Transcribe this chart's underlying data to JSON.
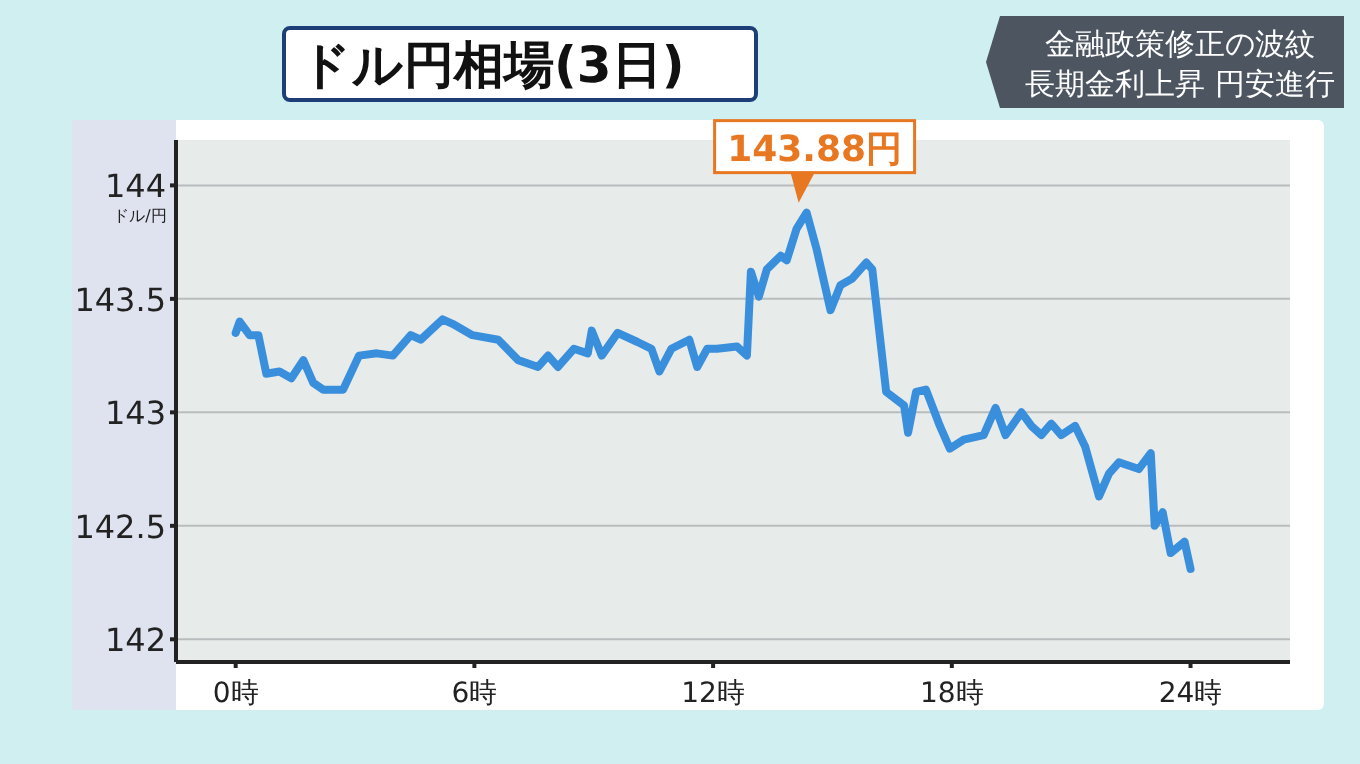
{
  "chart_data": {
    "type": "line",
    "title": "ドル円相場(3日)",
    "ylabel": "ドル/円",
    "annotations": [
      "金融政策修正の波紋",
      "長期金利上昇 円安進行",
      {
        "text": "143.88円",
        "x": 14.35,
        "y": 143.88
      }
    ],
    "series": [
      {
        "color": "#3a8fdc",
        "x": [
          0,
          0.1,
          0.35,
          0.57,
          0.77,
          1.1,
          1.4,
          1.7,
          1.95,
          2.2,
          2.7,
          3.1,
          3.55,
          3.95,
          4.4,
          4.65,
          5.2,
          5.45,
          5.95,
          6.6,
          7.1,
          7.6,
          7.85,
          8.1,
          8.5,
          8.85,
          8.95,
          9.2,
          9.6,
          10.1,
          10.45,
          10.65,
          10.95,
          11.4,
          11.6,
          11.85,
          12.1,
          12.6,
          12.85,
          12.95,
          13.15,
          13.35,
          13.7,
          13.85,
          14.1,
          14.35,
          14.6,
          14.95,
          15.2,
          15.5,
          15.85,
          16.0,
          16.35,
          16.8,
          16.9,
          17.1,
          17.35,
          17.7,
          17.95,
          18.3,
          18.8,
          19.1,
          19.35,
          19.75,
          20.0,
          20.25,
          20.5,
          20.75,
          21.1,
          21.35,
          21.7,
          21.95,
          22.2,
          22.7,
          23.0,
          23.1,
          23.3,
          23.5,
          23.85,
          24.0
        ],
        "values": [
          143.35,
          143.4,
          143.34,
          143.34,
          143.17,
          143.18,
          143.15,
          143.23,
          143.13,
          143.1,
          143.1,
          143.25,
          143.26,
          143.25,
          143.34,
          143.32,
          143.41,
          143.39,
          143.34,
          143.32,
          143.23,
          143.2,
          143.25,
          143.2,
          143.28,
          143.26,
          143.36,
          143.25,
          143.35,
          143.31,
          143.28,
          143.18,
          143.28,
          143.32,
          143.2,
          143.28,
          143.28,
          143.29,
          143.25,
          143.62,
          143.51,
          143.63,
          143.69,
          143.67,
          143.81,
          143.88,
          143.72,
          143.45,
          143.56,
          143.59,
          143.66,
          143.63,
          143.09,
          143.03,
          142.91,
          143.09,
          143.1,
          142.94,
          142.84,
          142.88,
          142.9,
          143.02,
          142.9,
          143.0,
          142.94,
          142.9,
          142.95,
          142.9,
          142.94,
          142.85,
          142.63,
          142.73,
          142.78,
          142.75,
          142.82,
          142.5,
          142.56,
          142.38,
          142.43,
          142.31
        ]
      }
    ],
    "xlim": [
      -1.5,
      26.5
    ],
    "ylim": [
      141.9,
      144.2
    ],
    "xticks": [
      {
        "value": 0,
        "label": "0時"
      },
      {
        "value": 6,
        "label": "6時"
      },
      {
        "value": 12,
        "label": "12時"
      },
      {
        "value": 18,
        "label": "18時"
      },
      {
        "value": 24,
        "label": "24時"
      }
    ],
    "yticks": [
      142,
      142.5,
      143,
      143.5,
      144
    ],
    "grid": "y",
    "marker": "none",
    "line_style": "solid"
  }
}
